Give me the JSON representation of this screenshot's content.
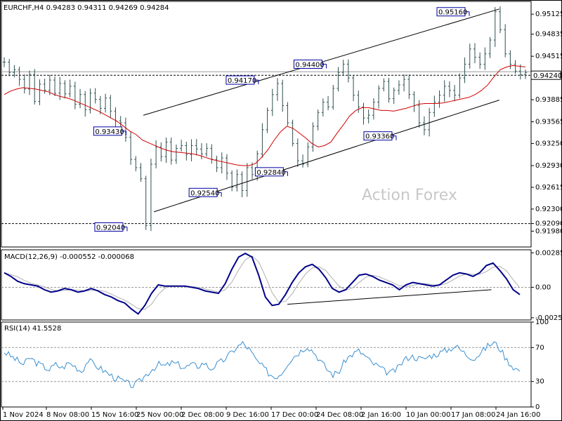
{
  "chart_data": {
    "type": "line",
    "header": "EURCHF,H4  0.94283 0.94311 0.94269 0.94284",
    "watermark": "Action Forex",
    "price_panel": {
      "ylim": [
        0.9175,
        0.9531
      ],
      "y_ticks": [
        "0.95125",
        "0.94835",
        "0.94515",
        "0.94240",
        "0.93885",
        "0.93565",
        "0.93250",
        "0.92930",
        "0.92615",
        "0.92300",
        "0.92090",
        "0.91980"
      ],
      "y_tick_values": [
        0.95125,
        0.94835,
        0.94515,
        0.9424,
        0.93885,
        0.93565,
        0.9325,
        0.9293,
        0.92615,
        0.923,
        0.9209,
        0.9198
      ],
      "current_price": 0.9424,
      "support_line": 0.9209,
      "annotations": [
        {
          "label": "0.95160",
          "x": 0.878,
          "y": 0.9516
        },
        {
          "label": "0.94400",
          "x": 0.608,
          "y": 0.944
        },
        {
          "label": "0.94170",
          "x": 0.48,
          "y": 0.9417
        },
        {
          "label": "0.93430",
          "x": 0.23,
          "y": 0.9343
        },
        {
          "label": "0.93360",
          "x": 0.74,
          "y": 0.9336
        },
        {
          "label": "0.92840",
          "x": 0.535,
          "y": 0.9284
        },
        {
          "label": "0.92540",
          "x": 0.41,
          "y": 0.9254
        },
        {
          "label": "0.92040",
          "x": 0.232,
          "y": 0.9204
        }
      ],
      "price_series": [
        0.9443,
        0.9428,
        0.9432,
        0.9418,
        0.9404,
        0.9425,
        0.9386,
        0.9411,
        0.9402,
        0.9417,
        0.9398,
        0.9412,
        0.9397,
        0.9408,
        0.9382,
        0.9396,
        0.9374,
        0.9398,
        0.9389,
        0.9376,
        0.9391,
        0.9372,
        0.9358,
        0.9355,
        0.9334,
        0.9302,
        0.929,
        0.9274,
        0.9206,
        0.9295,
        0.932,
        0.9306,
        0.9327,
        0.9301,
        0.9318,
        0.9322,
        0.9309,
        0.9322,
        0.9317,
        0.931,
        0.9318,
        0.9302,
        0.929,
        0.9304,
        0.9282,
        0.9262,
        0.928,
        0.9257,
        0.929,
        0.928,
        0.931,
        0.9345,
        0.9373,
        0.9396,
        0.9412,
        0.938,
        0.9355,
        0.9325,
        0.93,
        0.9295,
        0.932,
        0.935,
        0.937,
        0.9385,
        0.9378,
        0.9405,
        0.9428,
        0.944,
        0.942,
        0.9395,
        0.9378,
        0.9362,
        0.9366,
        0.9385,
        0.9405,
        0.9415,
        0.939,
        0.9402,
        0.941,
        0.9418,
        0.9396,
        0.938,
        0.9355,
        0.9345,
        0.937,
        0.9385,
        0.9395,
        0.9408,
        0.9402,
        0.9395,
        0.942,
        0.944,
        0.9462,
        0.945,
        0.944,
        0.9455,
        0.9475,
        0.9516,
        0.949,
        0.9455,
        0.944,
        0.943,
        0.9425,
        0.9428
      ],
      "ma_series": [
        0.9396,
        0.9401,
        0.9404,
        0.9406,
        0.9405,
        0.9404,
        0.9402,
        0.94,
        0.9396,
        0.9393,
        0.9391,
        0.9388,
        0.9384,
        0.938,
        0.9376,
        0.9372,
        0.9367,
        0.9362,
        0.9357,
        0.935,
        0.9343,
        0.9338,
        0.933,
        0.9326,
        0.9322,
        0.9318,
        0.9315,
        0.9313,
        0.9312,
        0.9311,
        0.931,
        0.9308,
        0.9305,
        0.9302,
        0.93,
        0.9298,
        0.9296,
        0.9294,
        0.9293,
        0.9293,
        0.9296,
        0.9305,
        0.9316,
        0.933,
        0.9342,
        0.935,
        0.9347,
        0.934,
        0.9333,
        0.9325,
        0.932,
        0.9322,
        0.9327,
        0.934,
        0.9352,
        0.9365,
        0.9373,
        0.9377,
        0.9377,
        0.9375,
        0.9373,
        0.9373,
        0.9372,
        0.9374,
        0.9376,
        0.9379,
        0.9382,
        0.9383,
        0.9383,
        0.9383,
        0.9384,
        0.9386,
        0.9388,
        0.939,
        0.9392,
        0.9396,
        0.9402,
        0.941,
        0.9422,
        0.9432,
        0.9436,
        0.9438,
        0.9437,
        0.9436
      ],
      "channel_upper": [
        [
          0.268,
          0.9366
        ],
        [
          0.94,
          0.952
        ]
      ],
      "channel_lower": [
        [
          0.288,
          0.9226
        ],
        [
          0.94,
          0.9388
        ]
      ]
    },
    "macd_panel": {
      "label": "MACD(12,26,9) -0.000552 -0.000068",
      "ylim": [
        -0.0027,
        0.0031
      ],
      "y_ticks": [
        "0.00285",
        "0.00",
        "-0.00252"
      ],
      "y_tick_values": [
        0.00285,
        0.0,
        -0.00252
      ],
      "macd_series": [
        0.0012,
        0.0009,
        0.0005,
        0.0003,
        0.0002,
        0.0001,
        -0.0002,
        -0.0004,
        -0.0003,
        -0.0001,
        -0.0002,
        -0.0004,
        -0.0003,
        -0.0001,
        -0.0003,
        -0.0006,
        -0.0008,
        -0.0011,
        -0.0013,
        -0.0018,
        -0.0022,
        -0.0015,
        -0.0005,
        0.0002,
        0.0001,
        0.0001,
        0.0001,
        0.0001,
        0.0,
        -0.0001,
        -0.0003,
        -0.0004,
        -0.0005,
        0.0003,
        0.0015,
        0.0025,
        0.0028,
        0.0025,
        0.001,
        -0.0008,
        -0.0015,
        -0.0014,
        -0.0006,
        0.0004,
        0.0012,
        0.0017,
        0.0019,
        0.0015,
        0.0008,
        -0.0001,
        -0.0004,
        -0.0002,
        0.0004,
        0.001,
        0.0011,
        0.0009,
        0.0006,
        0.0004,
        0.0002,
        -0.0002,
        0.0002,
        0.0004,
        0.0003,
        0.0002,
        0.0001,
        0.0002,
        0.0006,
        0.001,
        0.0012,
        0.0011,
        0.0009,
        0.0012,
        0.0018,
        0.002,
        0.0014,
        0.0007,
        -0.0002,
        -0.0006
      ],
      "trend_line": [
        [
          0.54,
          -0.0014
        ],
        [
          0.925,
          -0.0002
        ]
      ]
    },
    "rsi_panel": {
      "label": "RSI(14) 41.5528",
      "ylim": [
        0,
        100
      ],
      "y_ticks": [
        "100",
        "70",
        "30",
        "0"
      ],
      "y_tick_values": [
        100,
        70,
        30,
        0
      ],
      "rsi_series": [
        65,
        60,
        55,
        50,
        58,
        52,
        48,
        44,
        50,
        46,
        52,
        48,
        42,
        55,
        50,
        45,
        40,
        35,
        32,
        28,
        25,
        30,
        38,
        45,
        50,
        48,
        52,
        50,
        46,
        50,
        48,
        52,
        45,
        50,
        55,
        62,
        70,
        75,
        68,
        56,
        48,
        40,
        35,
        40,
        52,
        60,
        66,
        72,
        65,
        55,
        45,
        38,
        42,
        56,
        62,
        66,
        60,
        52,
        48,
        42,
        40,
        45,
        55,
        60,
        58,
        56,
        60,
        62,
        65,
        68,
        72,
        66,
        60,
        58,
        64,
        72,
        76,
        68,
        55,
        47,
        42
      ]
    },
    "x_ticks": [
      "1 Nov 2024",
      "8 Nov 08:00",
      "15 Nov 16:00",
      "25 Nov 00:00",
      "2 Dec 08:00",
      "9 Dec 16:00",
      "17 Dec 00:00",
      "24 Dec 08:00",
      "2 Jan 16:00",
      "10 Jan 00:00",
      "17 Jan 08:00",
      "24 Jan 16:00"
    ]
  }
}
